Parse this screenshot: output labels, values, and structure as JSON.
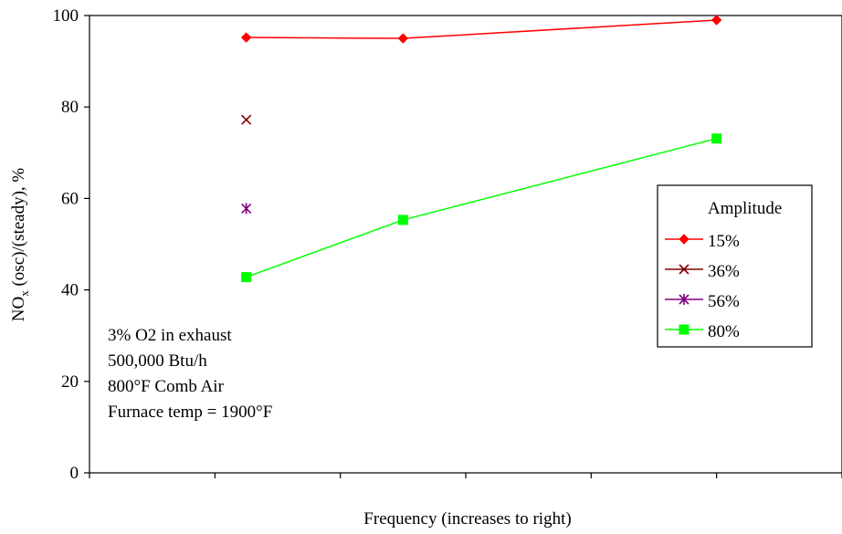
{
  "chart_data": {
    "type": "line",
    "xlabel": "Frequency (increases to right)",
    "ylabel_main": "NO",
    "ylabel_sub": "x",
    "ylabel_rest": " (osc)/(steady), %",
    "ylim": [
      0,
      100
    ],
    "yticks": [
      0,
      20,
      40,
      60,
      80,
      100
    ],
    "yticks_labels": [
      "0",
      "20",
      "40",
      "60",
      "80",
      "100"
    ],
    "xlim": [
      0,
      6
    ],
    "xticks": [
      0,
      1,
      2,
      3,
      4,
      5,
      6
    ],
    "grid": false,
    "legend": {
      "title": "Amplitude",
      "placement": "right"
    },
    "series": [
      {
        "name": "15%",
        "color": "#ff0000",
        "marker": "diamond",
        "line": true,
        "x": [
          1.25,
          2.5,
          5
        ],
        "y": [
          95.2,
          95.0,
          99.0
        ]
      },
      {
        "name": "36%",
        "color": "#800000",
        "marker": "x",
        "line": false,
        "x": [
          1.25
        ],
        "y": [
          77.2
        ]
      },
      {
        "name": "56%",
        "color": "#800080",
        "marker": "star",
        "line": false,
        "x": [
          1.25
        ],
        "y": [
          57.8
        ]
      },
      {
        "name": "80%",
        "color": "#00ff00",
        "marker": "square",
        "line": true,
        "x": [
          1.25,
          2.5,
          5
        ],
        "y": [
          42.8,
          55.3,
          73.1
        ]
      }
    ],
    "annotations": [
      "3% O2 in exhaust",
      "500,000 Btu/h",
      "800°F Comb Air",
      "Furnace temp = 1900°F"
    ]
  }
}
